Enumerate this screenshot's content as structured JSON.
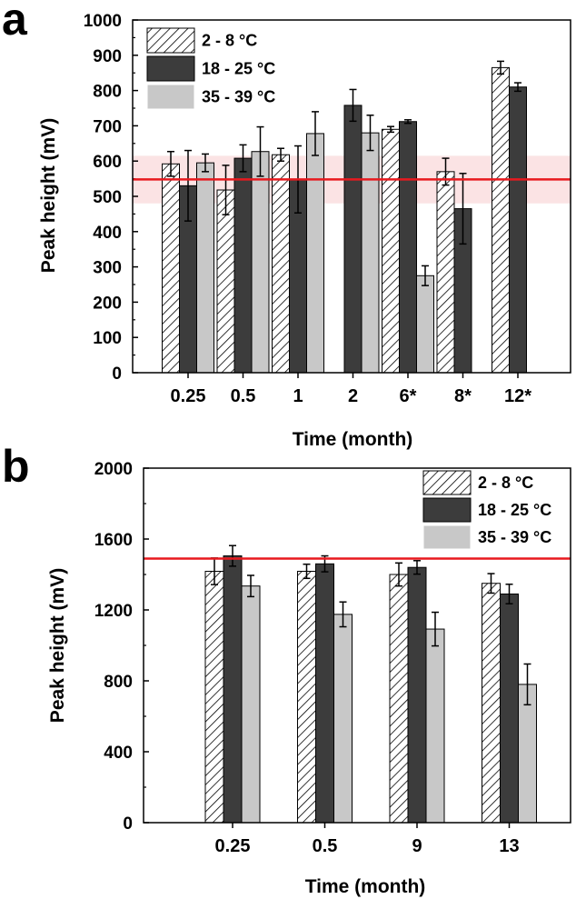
{
  "colors": {
    "hatched_fill": "#ffffff",
    "hatch_stroke": "#000000",
    "dark_fill": "#3c3c3c",
    "light_fill": "#c8c8c8",
    "reference_line": "#e8191e",
    "reference_band": "#fbe3e4"
  },
  "chart_data": [
    {
      "type": "bar",
      "panel_label": "a",
      "xlabel": "Time (month)",
      "ylabel": "Peak height (mV)",
      "categories": [
        "0.25",
        "0.5",
        "1",
        "2",
        "6*",
        "8*",
        "12*"
      ],
      "ylim": [
        0,
        1000
      ],
      "yticks": [
        0,
        100,
        200,
        300,
        400,
        500,
        600,
        700,
        800,
        900,
        1000
      ],
      "ytick_labels": [
        "0",
        "100",
        "200",
        "300",
        "400",
        "500",
        "600",
        "700",
        "800",
        "900",
        "1000"
      ],
      "grid": false,
      "legend_position": "top-left",
      "reference_line": 548,
      "reference_band": [
        480,
        615
      ],
      "series": [
        {
          "name": "2 - 8 °C",
          "style": "hatched",
          "values": [
            592,
            518,
            618,
            null,
            690,
            570,
            865
          ],
          "errors": [
            35,
            70,
            18,
            null,
            8,
            38,
            18
          ]
        },
        {
          "name": "18 - 25 °C",
          "style": "dark",
          "values": [
            530,
            608,
            548,
            758,
            712,
            465,
            810
          ],
          "errors": [
            100,
            38,
            95,
            45,
            5,
            100,
            12
          ]
        },
        {
          "name": "35 - 39 °C",
          "style": "light",
          "values": [
            595,
            627,
            678,
            680,
            275,
            null,
            null
          ],
          "errors": [
            25,
            70,
            62,
            50,
            28,
            null,
            null
          ]
        }
      ]
    },
    {
      "type": "bar",
      "panel_label": "b",
      "xlabel": "Time (month)",
      "ylabel": "Peak height (mV)",
      "categories": [
        "0.25",
        "0.5",
        "9",
        "13"
      ],
      "ylim": [
        0,
        2000
      ],
      "yticks": [
        0,
        400,
        800,
        1200,
        1600,
        2000
      ],
      "ytick_labels": [
        "0",
        "400",
        "800",
        "1200",
        "1600",
        "2000"
      ],
      "grid": false,
      "legend_position": "top-right",
      "reference_line": 1490,
      "series": [
        {
          "name": "2 - 8 °C",
          "style": "hatched",
          "values": [
            1418,
            1418,
            1400,
            1350
          ],
          "errors": [
            75,
            40,
            65,
            55
          ]
        },
        {
          "name": "18 - 25 °C",
          "style": "dark",
          "values": [
            1505,
            1460,
            1440,
            1290
          ],
          "errors": [
            58,
            45,
            38,
            55
          ]
        },
        {
          "name": "35 - 39 °C",
          "style": "light",
          "values": [
            1335,
            1175,
            1092,
            780
          ],
          "errors": [
            60,
            70,
            95,
            115
          ]
        }
      ]
    }
  ]
}
